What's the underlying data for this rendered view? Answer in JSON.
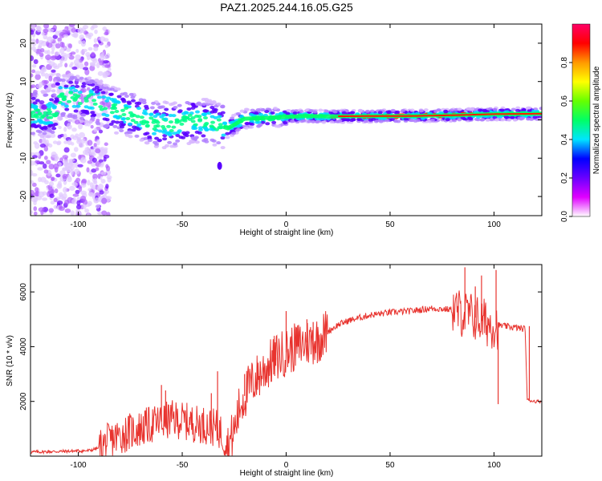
{
  "title": "PAZ1.2025.244.16.05.G25",
  "colors": {
    "snr_line": "#e8332e",
    "axis": "#000000"
  },
  "chart_data": [
    {
      "type": "heatmap",
      "xlabel": "Height of straight line (km)",
      "ylabel": "Frequency (Hz)",
      "xlim": [
        -123,
        123
      ],
      "ylim": [
        -25,
        25
      ],
      "xticks": [
        -100,
        -50,
        0,
        50,
        100
      ],
      "yticks": [
        -20,
        -10,
        0,
        10,
        20
      ],
      "ridge": [
        {
          "x": -110,
          "f": 6
        },
        {
          "x": -95,
          "f": 5.5
        },
        {
          "x": -85,
          "f": 3
        },
        {
          "x": -75,
          "f": 1.5
        },
        {
          "x": -65,
          "f": -1
        },
        {
          "x": -55,
          "f": -1.5
        },
        {
          "x": -45,
          "f": 0
        },
        {
          "x": -35,
          "f": -1
        },
        {
          "x": -28,
          "f": -2.2
        },
        {
          "x": -20,
          "f": 0.3
        },
        {
          "x": -10,
          "f": 0.5
        },
        {
          "x": 0,
          "f": 0.8
        },
        {
          "x": 10,
          "f": 1
        },
        {
          "x": 20,
          "f": 0.9
        },
        {
          "x": 40,
          "f": 1
        },
        {
          "x": 60,
          "f": 1
        },
        {
          "x": 80,
          "f": 1.2
        },
        {
          "x": 100,
          "f": 1.5
        },
        {
          "x": 123,
          "f": 1.6
        }
      ],
      "colorbar": {
        "label": "Normalized spectral amplitude",
        "ticks": [
          "0.0",
          "0.2",
          "0.4",
          "0.6",
          "0.8"
        ],
        "stops": [
          "#ffffff",
          "#e000ff",
          "#6a00ff",
          "#0000ff",
          "#00e5ff",
          "#00ff66",
          "#66ff00",
          "#ffff00",
          "#ff9900",
          "#ff0000",
          "#ff0066"
        ]
      }
    },
    {
      "type": "line",
      "xlabel": "Height of straight line (km)",
      "ylabel": "SNR (10 * v/v)",
      "xlim": [
        -123,
        123
      ],
      "ylim": [
        0,
        7000
      ],
      "xticks": [
        -100,
        -50,
        0,
        50,
        100
      ],
      "yticks": [
        2000,
        4000,
        6000
      ],
      "series": [
        {
          "name": "SNR",
          "points": [
            [
              -123,
              150
            ],
            [
              -110,
              170
            ],
            [
              -95,
              200
            ],
            [
              -90,
              300
            ],
            [
              -85,
              550
            ],
            [
              -80,
              750
            ],
            [
              -75,
              900
            ],
            [
              -70,
              1000
            ],
            [
              -65,
              1150
            ],
            [
              -60,
              1250
            ],
            [
              -55,
              1350
            ],
            [
              -50,
              1300
            ],
            [
              -45,
              1200
            ],
            [
              -40,
              1150
            ],
            [
              -35,
              1050
            ],
            [
              -32,
              950
            ],
            [
              -28,
              350
            ],
            [
              -25,
              900
            ],
            [
              -22,
              1900
            ],
            [
              -18,
              2500
            ],
            [
              -15,
              2800
            ],
            [
              -10,
              3200
            ],
            [
              -5,
              3600
            ],
            [
              0,
              3800
            ],
            [
              5,
              4000
            ],
            [
              10,
              4150
            ],
            [
              15,
              4250
            ],
            [
              20,
              4550
            ],
            [
              25,
              4800
            ],
            [
              30,
              4950
            ],
            [
              35,
              5050
            ],
            [
              40,
              5150
            ],
            [
              50,
              5250
            ],
            [
              60,
              5300
            ],
            [
              70,
              5400
            ],
            [
              80,
              5350
            ],
            [
              85,
              5200
            ],
            [
              90,
              5100
            ],
            [
              95,
              4900
            ],
            [
              100,
              4800
            ],
            [
              105,
              4750
            ],
            [
              110,
              4700
            ],
            [
              115,
              4650
            ],
            [
              116,
              2050
            ],
            [
              120,
              2000
            ],
            [
              123,
              2000
            ]
          ],
          "spikes": [
            [
              -60,
              2600
            ],
            [
              -58,
              2400
            ],
            [
              -36,
              2300
            ],
            [
              -33,
              3100
            ],
            [
              -20,
              3000
            ],
            [
              -5,
              3500
            ],
            [
              0,
              5300
            ],
            [
              5,
              4700
            ],
            [
              10,
              5000
            ],
            [
              13,
              4900
            ],
            [
              20,
              4600
            ],
            [
              86,
              6900
            ],
            [
              91,
              6200
            ],
            [
              94,
              6600
            ],
            [
              101,
              6800
            ],
            [
              102,
              1900
            ],
            [
              117,
              4750
            ]
          ]
        }
      ]
    }
  ]
}
